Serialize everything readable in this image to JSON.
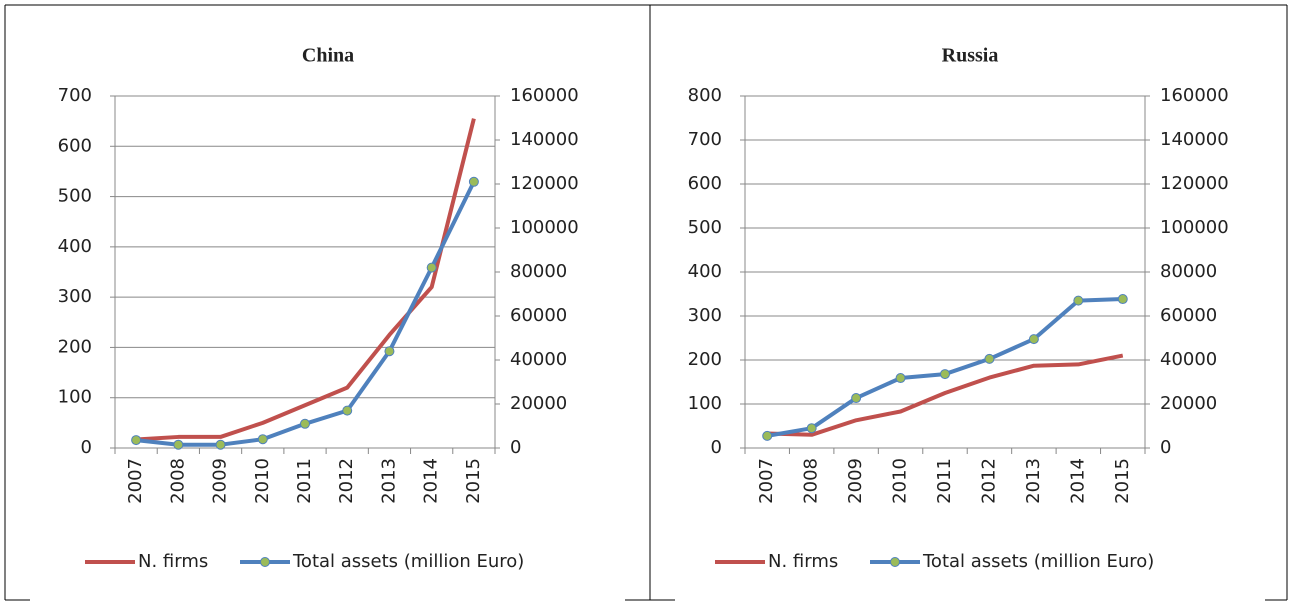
{
  "chart_data": [
    {
      "type": "line",
      "title": "China",
      "categories": [
        "2007",
        "2008",
        "2009",
        "2010",
        "2011",
        "2012",
        "2013",
        "2014",
        "2015"
      ],
      "series": [
        {
          "name": "N. firms",
          "color": "#c0504d",
          "values": [
            17,
            22,
            22,
            50,
            85,
            120,
            225,
            320,
            655
          ]
        },
        {
          "name": "Total assets (million Euro)",
          "color": "#4f81bd",
          "marker_color": "#9bbb59",
          "axis": "y2",
          "values": [
            3600,
            1500,
            1500,
            4000,
            11000,
            17000,
            44000,
            82000,
            121000
          ]
        }
      ],
      "ylim": [
        0,
        700
      ],
      "yticks": [
        0,
        100,
        200,
        300,
        400,
        500,
        600,
        700
      ],
      "y2lim": [
        0,
        160000
      ],
      "y2ticks": [
        0,
        20000,
        40000,
        60000,
        80000,
        100000,
        120000,
        140000,
        160000
      ],
      "grid": true
    },
    {
      "type": "line",
      "title": "Russia",
      "categories": [
        "2007",
        "2008",
        "2009",
        "2010",
        "2011",
        "2012",
        "2013",
        "2014",
        "2015"
      ],
      "series": [
        {
          "name": "N. firms",
          "color": "#c0504d",
          "values": [
            33,
            30,
            63,
            83,
            125,
            160,
            187,
            190,
            210
          ]
        },
        {
          "name": "Total assets (million Euro)",
          "color": "#4f81bd",
          "marker_color": "#9bbb59",
          "axis": "y2",
          "values": [
            5500,
            9000,
            22700,
            31800,
            33600,
            40500,
            49500,
            67000,
            67700
          ]
        }
      ],
      "ylim": [
        0,
        800
      ],
      "yticks": [
        0,
        100,
        200,
        300,
        400,
        500,
        600,
        700,
        800
      ],
      "y2lim": [
        0,
        160000
      ],
      "y2ticks": [
        0,
        20000,
        40000,
        60000,
        80000,
        100000,
        120000,
        140000,
        160000
      ],
      "grid": true
    }
  ]
}
